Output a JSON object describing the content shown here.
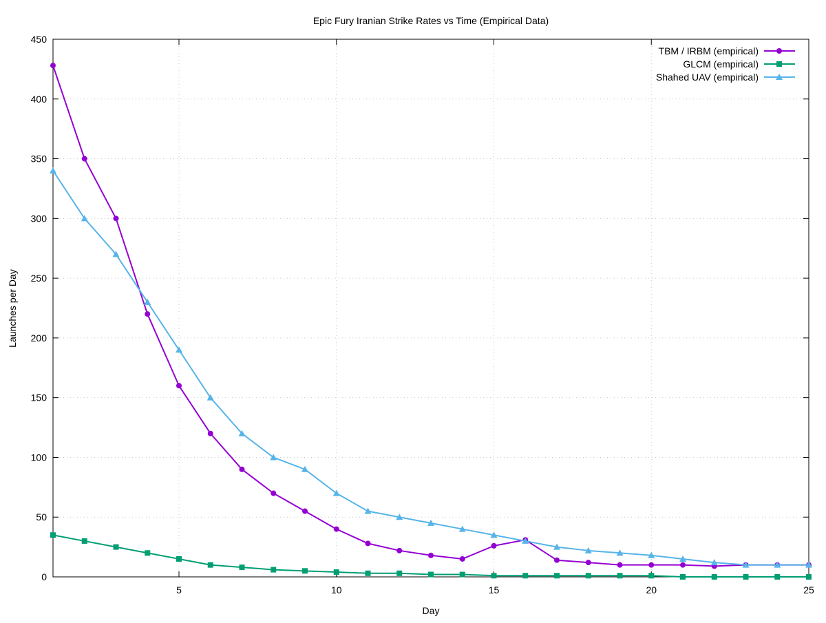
{
  "chart_data": {
    "type": "line",
    "title": "Epic Fury Iranian Strike Rates vs Time (Empirical Data)",
    "xlabel": "Day",
    "ylabel": "Launches per Day",
    "xlim": [
      1,
      25
    ],
    "ylim": [
      0,
      450
    ],
    "xticks": [
      5,
      10,
      15,
      20,
      25
    ],
    "yticks": [
      0,
      50,
      100,
      150,
      200,
      250,
      300,
      350,
      400,
      450
    ],
    "grid": true,
    "legend_position": "top-right",
    "x": [
      1,
      2,
      3,
      4,
      5,
      6,
      7,
      8,
      9,
      10,
      11,
      12,
      13,
      14,
      15,
      16,
      17,
      18,
      19,
      20,
      21,
      22,
      23,
      24,
      25
    ],
    "series": [
      {
        "name": "TBM / IRBM (empirical)",
        "color": "#9400d3",
        "marker": "circle",
        "values": [
          428,
          350,
          300,
          220,
          160,
          120,
          90,
          70,
          55,
          40,
          28,
          22,
          18,
          15,
          26,
          31,
          14,
          12,
          10,
          10,
          10,
          9,
          10,
          10,
          10
        ]
      },
      {
        "name": "GLCM (empirical)",
        "color": "#009e73",
        "marker": "square",
        "values": [
          35,
          30,
          25,
          20,
          15,
          10,
          8,
          6,
          5,
          4,
          3,
          3,
          2,
          2,
          1,
          1,
          1,
          1,
          1,
          1,
          0,
          0,
          0,
          0,
          0
        ]
      },
      {
        "name": "Shahed UAV (empirical)",
        "color": "#56b4e9",
        "marker": "triangle",
        "values": [
          340,
          300,
          270,
          230,
          190,
          150,
          120,
          100,
          90,
          70,
          55,
          50,
          45,
          40,
          35,
          30,
          25,
          22,
          20,
          18,
          15,
          12,
          10,
          10,
          10
        ]
      }
    ]
  }
}
